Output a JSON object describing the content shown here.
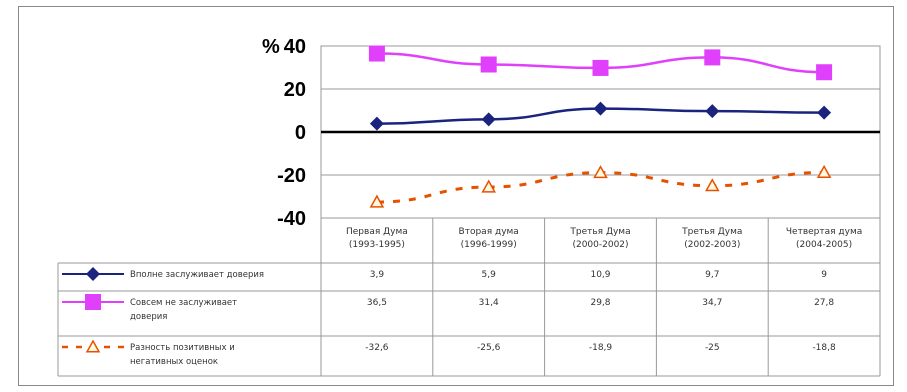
{
  "chart_data": {
    "type": "line",
    "title": "",
    "xlabel": "",
    "ylabel": "",
    "y_unit_label": "%",
    "ylim": [
      -40,
      40
    ],
    "yticks": [
      40,
      20,
      0,
      -20,
      -40
    ],
    "grid": true,
    "legend_placement": "bottom data table",
    "categories": [
      [
        "Первая Дума",
        "(1993-1995)"
      ],
      [
        "Вторая дума",
        "(1996-1999)"
      ],
      [
        "Третья Дума",
        "(2000-2002)"
      ],
      [
        "Третья Дума",
        "(2002-2003)"
      ],
      [
        "Четвертая дума",
        "(2004-2005)"
      ]
    ],
    "series": [
      {
        "name_lines": [
          "Вполне заслуживает доверия"
        ],
        "values": [
          3.9,
          5.9,
          10.9,
          9.7,
          9
        ],
        "labels": [
          "3,9",
          "5,9",
          "10,9",
          "9,7",
          "9"
        ],
        "color": "#1a237e",
        "marker": "diamond",
        "dash": false
      },
      {
        "name_lines": [
          "Совсем не заслуживает",
          "доверия"
        ],
        "values": [
          36.5,
          31.4,
          29.8,
          34.7,
          27.8
        ],
        "labels": [
          "36,5",
          "31,4",
          "29,8",
          "34,7",
          "27,8"
        ],
        "color": "#e040fb",
        "marker": "square",
        "dash": false
      },
      {
        "name_lines": [
          "Разность позитивных и",
          "негативных оценок"
        ],
        "values": [
          -32.6,
          -25.6,
          -18.9,
          -25,
          -18.8
        ],
        "labels": [
          "-32,6",
          "-25,6",
          "-18,9",
          "-25",
          "-18,8"
        ],
        "color": "#e65100",
        "marker": "triangle",
        "dash": true
      }
    ]
  }
}
